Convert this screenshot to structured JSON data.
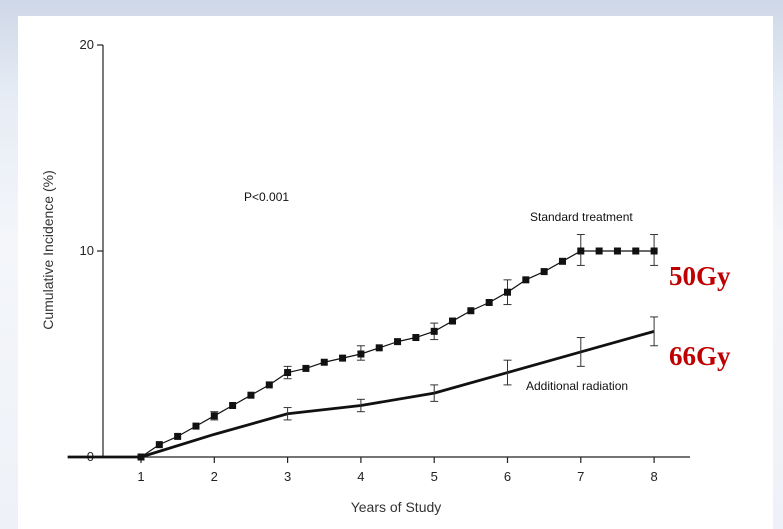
{
  "chart_data": {
    "type": "line",
    "xlabel": "Years of Study",
    "ylabel": "Cumulative Incidence (%)",
    "xlim": [
      0,
      8.5
    ],
    "ylim": [
      0,
      20
    ],
    "x_ticks": [
      1,
      2,
      3,
      4,
      5,
      6,
      7,
      8
    ],
    "y_ticks": [
      0,
      10,
      20
    ],
    "grid": false,
    "annotations": {
      "p_value": "P<0.001",
      "dose_standard": "50Gy",
      "dose_additional": "66Gy"
    },
    "series": [
      {
        "name": "Standard treatment",
        "marker": "square",
        "x": [
          0,
          1,
          1.25,
          1.5,
          1.75,
          2,
          2.25,
          2.5,
          2.75,
          3,
          3.25,
          3.5,
          3.75,
          4,
          4.25,
          4.5,
          4.75,
          5,
          5.25,
          5.5,
          5.75,
          6,
          6.25,
          6.5,
          6.75,
          7,
          7.25,
          7.5,
          7.75,
          8
        ],
        "y": [
          0,
          0,
          0.6,
          1.0,
          1.5,
          2.0,
          2.5,
          3.0,
          3.5,
          4.1,
          4.3,
          4.6,
          4.8,
          5.0,
          5.3,
          5.6,
          5.8,
          6.1,
          6.6,
          7.1,
          7.5,
          8.0,
          8.6,
          9.0,
          9.5,
          10.0,
          10.0,
          10.0,
          10.0,
          10.0
        ],
        "errors": [
          {
            "x": 2,
            "low": 1.8,
            "high": 2.2
          },
          {
            "x": 3,
            "low": 3.8,
            "high": 4.4
          },
          {
            "x": 4,
            "low": 4.7,
            "high": 5.4
          },
          {
            "x": 5,
            "low": 5.7,
            "high": 6.5
          },
          {
            "x": 6,
            "low": 7.4,
            "high": 8.6
          },
          {
            "x": 7,
            "low": 9.3,
            "high": 10.8
          },
          {
            "x": 8,
            "low": 9.3,
            "high": 10.8
          }
        ]
      },
      {
        "name": "Additional radiation",
        "marker": "none",
        "x": [
          0,
          1,
          2,
          3,
          4,
          5,
          6,
          7,
          8
        ],
        "y": [
          0,
          0,
          1.1,
          2.1,
          2.5,
          3.1,
          4.1,
          5.1,
          6.1
        ],
        "errors": [
          {
            "x": 3,
            "low": 1.8,
            "high": 2.4
          },
          {
            "x": 4,
            "low": 2.2,
            "high": 2.8
          },
          {
            "x": 5,
            "low": 2.7,
            "high": 3.5
          },
          {
            "x": 6,
            "low": 3.5,
            "high": 4.7
          },
          {
            "x": 7,
            "low": 4.4,
            "high": 5.8
          },
          {
            "x": 8,
            "low": 5.4,
            "high": 6.8
          }
        ]
      }
    ]
  }
}
